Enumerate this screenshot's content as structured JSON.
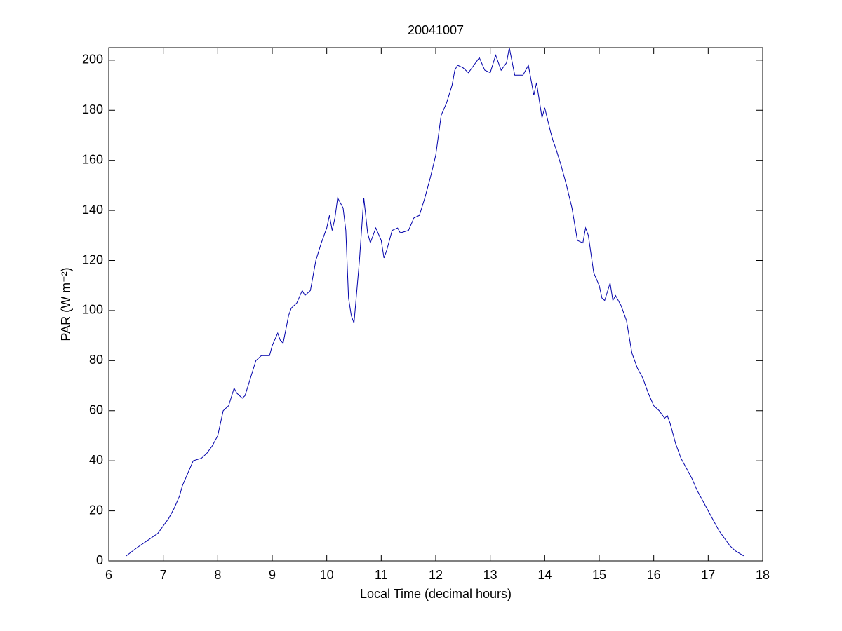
{
  "chart_data": {
    "type": "line",
    "title": "20041007",
    "xlabel": "Local Time (decimal hours)",
    "ylabel": "PAR (W m⁻²)",
    "xlim": [
      6,
      18
    ],
    "xticks": [
      6,
      7,
      8,
      9,
      10,
      11,
      12,
      13,
      14,
      15,
      16,
      17,
      18
    ],
    "ylim": [
      0,
      205
    ],
    "yticks": [
      0,
      20,
      40,
      60,
      80,
      100,
      120,
      140,
      160,
      180,
      200
    ],
    "grid": false,
    "series": [
      {
        "name": "PAR",
        "color": "#0000aa",
        "x": [
          6.32,
          6.5,
          6.7,
          6.9,
          7.0,
          7.1,
          7.2,
          7.3,
          7.35,
          7.45,
          7.55,
          7.7,
          7.8,
          7.9,
          8.0,
          8.05,
          8.1,
          8.2,
          8.3,
          8.35,
          8.45,
          8.5,
          8.6,
          8.7,
          8.8,
          8.95,
          9.0,
          9.1,
          9.15,
          9.2,
          9.3,
          9.35,
          9.45,
          9.55,
          9.6,
          9.7,
          9.8,
          9.9,
          10.0,
          10.05,
          10.1,
          10.15,
          10.2,
          10.3,
          10.35,
          10.4,
          10.45,
          10.5,
          10.6,
          10.68,
          10.75,
          10.8,
          10.9,
          11.0,
          11.05,
          11.1,
          11.2,
          11.3,
          11.35,
          11.5,
          11.6,
          11.7,
          11.8,
          11.9,
          12.0,
          12.1,
          12.2,
          12.3,
          12.35,
          12.4,
          12.5,
          12.6,
          12.7,
          12.8,
          12.9,
          13.0,
          13.1,
          13.2,
          13.3,
          13.35,
          13.45,
          13.6,
          13.7,
          13.8,
          13.85,
          13.95,
          14.0,
          14.1,
          14.15,
          14.2,
          14.3,
          14.4,
          14.5,
          14.6,
          14.7,
          14.75,
          14.8,
          14.9,
          15.0,
          15.05,
          15.1,
          15.2,
          15.25,
          15.3,
          15.4,
          15.5,
          15.6,
          15.7,
          15.8,
          15.9,
          16.0,
          16.1,
          16.2,
          16.25,
          16.3,
          16.4,
          16.5,
          16.6,
          16.7,
          16.8,
          16.9,
          17.0,
          17.1,
          17.2,
          17.3,
          17.4,
          17.5,
          17.65
        ],
        "values": [
          2,
          5,
          8,
          11,
          14,
          17,
          21,
          26,
          30,
          35,
          40,
          41,
          43,
          46,
          50,
          55,
          60,
          62,
          69,
          67,
          65,
          66,
          73,
          80,
          82,
          82,
          86,
          91,
          88,
          87,
          98,
          101,
          103,
          108,
          106,
          108,
          120,
          127,
          133,
          138,
          132,
          137,
          145,
          141,
          132,
          105,
          98,
          95,
          120,
          145,
          131,
          127,
          133,
          128,
          121,
          124,
          132,
          133,
          131,
          132,
          137,
          138,
          145,
          153,
          162,
          178,
          183,
          190,
          196,
          198,
          197,
          195,
          198,
          201,
          196,
          195,
          202,
          196,
          199,
          205,
          194,
          194,
          198,
          186,
          191,
          177,
          181,
          172,
          168,
          165,
          158,
          150,
          141,
          128,
          127,
          133,
          130,
          115,
          110,
          105,
          104,
          111,
          104,
          106,
          102,
          96,
          83,
          77,
          73,
          67,
          62,
          60,
          57,
          58,
          55,
          47,
          41,
          37,
          33,
          28,
          24,
          20,
          16,
          12,
          9,
          6,
          4,
          2
        ]
      }
    ]
  }
}
